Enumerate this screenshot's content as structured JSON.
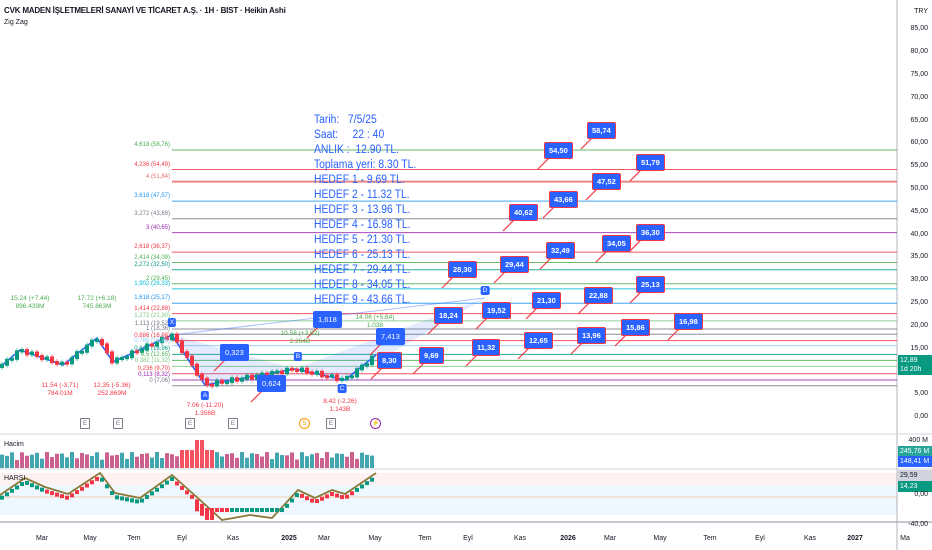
{
  "header": {
    "title": "CVK MADEN İŞLETMELERİ SANAYİ VE TİCARET A.Ş. · 1H · BIST · Heikin Ashi",
    "indicator": "Zig Zag",
    "currency": "TRY"
  },
  "price_axis": [
    "85,00",
    "80,00",
    "75,00",
    "70,00",
    "65,00",
    "60,00",
    "55,00",
    "50,00",
    "45,00",
    "40,00",
    "35,00",
    "30,00",
    "25,00",
    "20,00",
    "15,00",
    "5,00",
    "0,00"
  ],
  "price_tag": {
    "price": "12,89",
    "countdown": "1d 20h"
  },
  "info_box": [
    "Tarih:   7/5/25",
    "Saat:     22 : 40",
    "ANLIK :  12.90 TL.",
    "Toplama yeri: 8.30 TL.",
    "HEDEF 1 - 9.69 TL.",
    "HEDEF 2 - 11.32 TL.",
    "HEDEF 3 - 13.96 TL.",
    "HEDEF 4 - 16.98 TL.",
    "HEDEF 5 - 21.30 TL.",
    "HEDEF 6 - 25.13 TL.",
    "HEDEF 7 - 29.44 TL.",
    "HEDEF 8 - 34.05 TL.",
    "HEDEF 9 - 43.66 TL."
  ],
  "fib_levels": [
    {
      "label": "4,618 (58,76)",
      "price": 58.76,
      "color": "#4caf50"
    },
    {
      "label": "4,236 (54,49)",
      "price": 54.49,
      "color": "#f23645"
    },
    {
      "label": "4 (51,84)",
      "price": 51.84,
      "color": "#e57373"
    },
    {
      "label": "3,618 (47,57)",
      "price": 47.57,
      "color": "#2196f3"
    },
    {
      "label": "3,272 (43,69)",
      "price": 43.69,
      "color": "#787b86"
    },
    {
      "label": "3 (40,65)",
      "price": 40.65,
      "color": "#9c27b0"
    },
    {
      "label": "2,618 (36,37)",
      "price": 36.37,
      "color": "#f23645"
    },
    {
      "label": "2,414 (34,09)",
      "price": 34.09,
      "color": "#4caf50"
    },
    {
      "label": "2,272 (32,50)",
      "price": 32.5,
      "color": "#089981"
    },
    {
      "label": "2 (29,45)",
      "price": 29.45,
      "color": "#4caf50"
    },
    {
      "label": "1,902 (28,33)",
      "price": 28.33,
      "color": "#00bcd4"
    },
    {
      "label": "1,618 (25,17)",
      "price": 25.17,
      "color": "#2196f3"
    },
    {
      "label": "1,414 (22,89)",
      "price": 22.89,
      "color": "#f23645"
    },
    {
      "label": "1,272 (21,30)",
      "price": 21.3,
      "color": "#81c784"
    },
    {
      "label": "1,113 (19,52)",
      "price": 19.52,
      "color": "#787b86"
    },
    {
      "label": "1 (18,36)",
      "price": 18.36,
      "color": "#787b86"
    },
    {
      "label": "0,886 (16,98)",
      "price": 16.98,
      "color": "#f23645"
    },
    {
      "label": "0,786 (15,86)",
      "price": 15.86,
      "color": "#90caf9"
    },
    {
      "label": "0,618 (13,96)",
      "price": 13.96,
      "color": "#089981"
    },
    {
      "label": "0,5 (12,65)",
      "price": 12.65,
      "color": "#4caf50"
    },
    {
      "label": "0,382 (11,32)",
      "price": 11.32,
      "color": "#81c784"
    },
    {
      "label": "0,236 (9,70)",
      "price": 9.7,
      "color": "#f23645"
    },
    {
      "label": "0,113 (8,32)",
      "price": 8.32,
      "color": "#9c27b0"
    },
    {
      "label": "0 (7,06)",
      "price": 7.06,
      "color": "#787b86"
    }
  ],
  "callouts": [
    "58,74",
    "54,50",
    "51,79",
    "47,52",
    "43,66",
    "40,62",
    "36,30",
    "34,05",
    "32,49",
    "29,44",
    "28,30",
    "25,13",
    "22,88",
    "21,30",
    "19,52",
    "18,24",
    "16,98",
    "15,86",
    "13,96",
    "12,65",
    "11,32",
    "9,69",
    "8,30",
    "7,413",
    "1,618",
    "0,323",
    "0,624"
  ],
  "pivots": [
    {
      "price": "15.24 (+7.44)",
      "vol": "896.439M",
      "color": "#4caf50"
    },
    {
      "price": "17.72 (+6.18)",
      "vol": "745.863M",
      "color": "#4caf50"
    },
    {
      "price": "11.54 (-3.71)",
      "vol": "784.01M",
      "color": "#f23645"
    },
    {
      "price": "12.35 (-5.36)",
      "vol": "252.869M",
      "color": "#f23645"
    },
    {
      "price": "7.06 (-11.20)",
      "vol": "1.356B",
      "color": "#f23645"
    },
    {
      "price": "10.58 (+3.62)",
      "vol": "2.264B",
      "color": "#4caf50"
    },
    {
      "price": "8.42 (-2.26)",
      "vol": "1.143B",
      "color": "#f23645"
    },
    {
      "price": "14.06 (+5.64)",
      "vol": "1.038",
      "color": "#4caf50"
    }
  ],
  "pattern_points": [
    "X",
    "A",
    "B",
    "C",
    "D"
  ],
  "events": [
    "E",
    "E",
    "E",
    "E",
    "S",
    "E",
    "⚡"
  ],
  "volume": {
    "label": "Hacim",
    "axis": "400 M",
    "tag1": "245,76 M",
    "tag2": "148,41 M"
  },
  "harsi": {
    "label": "HARSI",
    "tag1": "29,59",
    "tag2": "14,23",
    "zero": "0,00",
    "min": "-40,00"
  },
  "time_axis": [
    "Mar",
    "May",
    "Tem",
    "Eyl",
    "Kas",
    "2025",
    "Mar",
    "May",
    "Tem",
    "Eyl",
    "Kas",
    "2026",
    "Mar",
    "May",
    "Tem",
    "Eyl",
    "Kas",
    "2027",
    "Ma"
  ],
  "colors": {
    "up": "#089981",
    "down": "#f23645",
    "accent": "#2962ff",
    "zigzag": "#2962ff"
  }
}
